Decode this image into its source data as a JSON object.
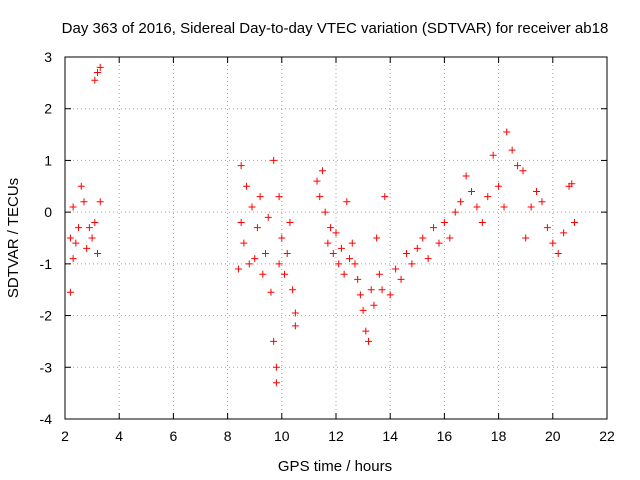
{
  "chart_data": {
    "type": "scatter",
    "title": "Day 363 of 2016, Sidereal Day-to-day VTEC variation (SDTVAR) for receiver ab18",
    "xlabel": "GPS time / hours",
    "ylabel": "SDTVAR / TECUs",
    "xlim": [
      2,
      22
    ],
    "ylim": [
      -4,
      3
    ],
    "xticks": [
      "2",
      "4",
      "6",
      "8",
      "10",
      "12",
      "14",
      "16",
      "18",
      "20",
      "22"
    ],
    "yticks": [
      "3",
      "2",
      "1",
      "0",
      "-1",
      "-2",
      "-3",
      "-4"
    ],
    "grid": true,
    "marker": "+",
    "color": "#ff0000",
    "series": [
      {
        "name": "SDTVAR",
        "points": [
          [
            2.2,
            -0.5
          ],
          [
            2.2,
            -1.55
          ],
          [
            2.3,
            -0.9
          ],
          [
            2.3,
            0.1
          ],
          [
            2.4,
            -0.6
          ],
          [
            2.5,
            -0.3
          ],
          [
            2.6,
            0.5
          ],
          [
            2.7,
            0.2
          ],
          [
            2.8,
            -0.7
          ],
          [
            2.9,
            -0.3
          ],
          [
            3.0,
            -0.5
          ],
          [
            3.1,
            -0.2
          ],
          [
            3.2,
            -0.8
          ],
          [
            3.3,
            0.2
          ],
          [
            3.1,
            2.55
          ],
          [
            3.2,
            2.7
          ],
          [
            3.3,
            2.8
          ],
          [
            8.4,
            -1.1
          ],
          [
            8.5,
            -0.2
          ],
          [
            8.5,
            0.9
          ],
          [
            8.6,
            -0.6
          ],
          [
            8.7,
            0.5
          ],
          [
            8.8,
            -1.0
          ],
          [
            8.9,
            0.1
          ],
          [
            9.0,
            -0.9
          ],
          [
            9.1,
            -0.3
          ],
          [
            9.2,
            0.3
          ],
          [
            9.3,
            -1.2
          ],
          [
            9.4,
            -0.8
          ],
          [
            9.5,
            -0.1
          ],
          [
            9.6,
            -1.55
          ],
          [
            9.7,
            1.0
          ],
          [
            9.7,
            -2.5
          ],
          [
            9.8,
            -3.3
          ],
          [
            9.8,
            -3.0
          ],
          [
            9.9,
            0.3
          ],
          [
            9.9,
            -1.0
          ],
          [
            10.0,
            -0.5
          ],
          [
            10.1,
            -1.2
          ],
          [
            10.2,
            -0.8
          ],
          [
            10.3,
            -0.2
          ],
          [
            10.4,
            -1.5
          ],
          [
            10.5,
            -1.95
          ],
          [
            10.5,
            -2.2
          ],
          [
            11.3,
            0.6
          ],
          [
            11.4,
            0.3
          ],
          [
            11.5,
            0.8
          ],
          [
            11.6,
            0.0
          ],
          [
            11.7,
            -0.6
          ],
          [
            11.8,
            -0.3
          ],
          [
            11.9,
            -0.8
          ],
          [
            12.0,
            -0.4
          ],
          [
            12.1,
            -1.0
          ],
          [
            12.2,
            -0.7
          ],
          [
            12.3,
            -1.2
          ],
          [
            12.4,
            0.2
          ],
          [
            12.5,
            -0.9
          ],
          [
            12.6,
            -0.6
          ],
          [
            12.7,
            -1.0
          ],
          [
            12.8,
            -1.3
          ],
          [
            12.9,
            -1.6
          ],
          [
            13.0,
            -1.9
          ],
          [
            13.1,
            -2.3
          ],
          [
            13.2,
            -2.5
          ],
          [
            13.3,
            -1.5
          ],
          [
            13.4,
            -1.8
          ],
          [
            13.5,
            -0.5
          ],
          [
            13.6,
            -1.2
          ],
          [
            13.7,
            -1.5
          ],
          [
            13.8,
            0.3
          ],
          [
            14.0,
            -1.6
          ],
          [
            14.2,
            -1.1
          ],
          [
            14.4,
            -1.3
          ],
          [
            14.6,
            -0.8
          ],
          [
            14.8,
            -1.0
          ],
          [
            15.0,
            -0.7
          ],
          [
            15.2,
            -0.5
          ],
          [
            15.4,
            -0.9
          ],
          [
            15.6,
            -0.3
          ],
          [
            15.8,
            -0.6
          ],
          [
            16.0,
            -0.2
          ],
          [
            16.2,
            -0.5
          ],
          [
            16.4,
            0.0
          ],
          [
            16.6,
            0.2
          ],
          [
            16.8,
            0.7
          ],
          [
            17.0,
            0.4
          ],
          [
            17.2,
            0.1
          ],
          [
            17.4,
            -0.2
          ],
          [
            17.6,
            0.3
          ],
          [
            17.8,
            1.1
          ],
          [
            18.0,
            0.5
          ],
          [
            18.2,
            0.1
          ],
          [
            18.3,
            1.55
          ],
          [
            18.5,
            1.2
          ],
          [
            18.7,
            0.9
          ],
          [
            18.9,
            0.8
          ],
          [
            19.0,
            -0.5
          ],
          [
            19.2,
            0.1
          ],
          [
            19.4,
            0.4
          ],
          [
            19.6,
            0.2
          ],
          [
            19.8,
            -0.3
          ],
          [
            20.0,
            -0.6
          ],
          [
            20.2,
            -0.8
          ],
          [
            20.4,
            -0.4
          ],
          [
            20.6,
            0.5
          ],
          [
            20.7,
            0.55
          ],
          [
            20.8,
            -0.2
          ]
        ]
      }
    ]
  }
}
